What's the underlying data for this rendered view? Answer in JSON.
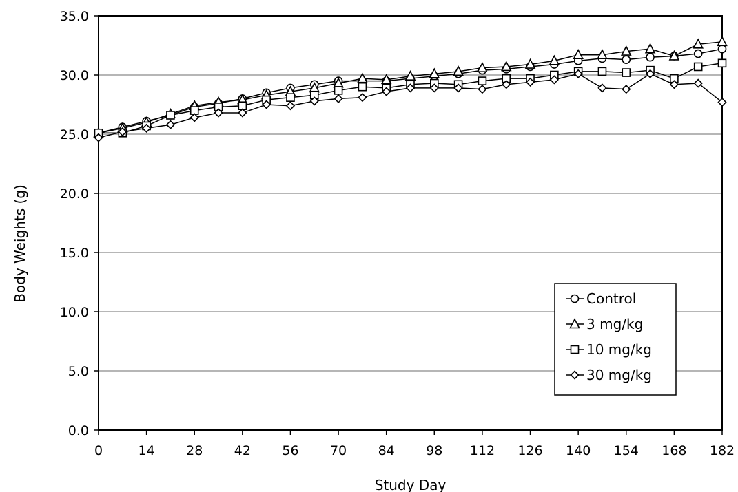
{
  "chart_data": {
    "type": "line",
    "xlabel": "Study Day",
    "ylabel": "Body Weights (g)",
    "xlim": [
      0,
      182
    ],
    "ylim": [
      0,
      35
    ],
    "x_ticks": [
      "0",
      "14",
      "28",
      "42",
      "56",
      "70",
      "84",
      "98",
      "112",
      "126",
      "140",
      "154",
      "168",
      "182"
    ],
    "y_ticks": [
      "0.0",
      "5.0",
      "10.0",
      "15.0",
      "20.0",
      "25.0",
      "30.0",
      "35.0"
    ],
    "grid": "horizontal",
    "legend_position": "bottom-right",
    "x": [
      0,
      7,
      14,
      21,
      28,
      35,
      42,
      49,
      56,
      63,
      70,
      77,
      84,
      91,
      98,
      105,
      112,
      119,
      126,
      133,
      140,
      147,
      154,
      161,
      168,
      175,
      182
    ],
    "series": [
      {
        "name": "Control",
        "marker": "circle",
        "values": [
          25.1,
          25.6,
          26.1,
          26.6,
          27.3,
          27.6,
          28.0,
          28.5,
          28.9,
          29.2,
          29.5,
          29.5,
          29.5,
          29.7,
          29.9,
          30.1,
          30.4,
          30.5,
          30.7,
          30.9,
          31.2,
          31.4,
          31.3,
          31.5,
          31.6,
          31.8,
          32.2
        ]
      },
      {
        "name": "3 mg/kg",
        "marker": "triangle",
        "values": [
          25.1,
          25.5,
          26.0,
          26.7,
          27.4,
          27.7,
          27.9,
          28.3,
          28.6,
          28.9,
          29.3,
          29.7,
          29.6,
          29.9,
          30.1,
          30.3,
          30.6,
          30.7,
          30.9,
          31.2,
          31.7,
          31.7,
          32.0,
          32.2,
          31.6,
          32.6,
          32.8
        ]
      },
      {
        "name": "10 mg/kg",
        "marker": "square",
        "values": [
          25.1,
          25.1,
          25.7,
          26.6,
          27.0,
          27.3,
          27.4,
          27.9,
          28.1,
          28.3,
          28.7,
          29.0,
          28.9,
          29.2,
          29.3,
          29.2,
          29.5,
          29.7,
          29.7,
          30.0,
          30.3,
          30.3,
          30.2,
          30.4,
          29.7,
          30.7,
          31.0
        ]
      },
      {
        "name": "30 mg/kg",
        "marker": "diamond",
        "values": [
          24.7,
          25.2,
          25.5,
          25.8,
          26.4,
          26.8,
          26.8,
          27.5,
          27.4,
          27.8,
          28.0,
          28.1,
          28.6,
          28.9,
          28.9,
          28.9,
          28.8,
          29.2,
          29.4,
          29.6,
          30.1,
          28.9,
          28.8,
          30.1,
          29.2,
          29.3,
          27.7
        ]
      }
    ]
  }
}
